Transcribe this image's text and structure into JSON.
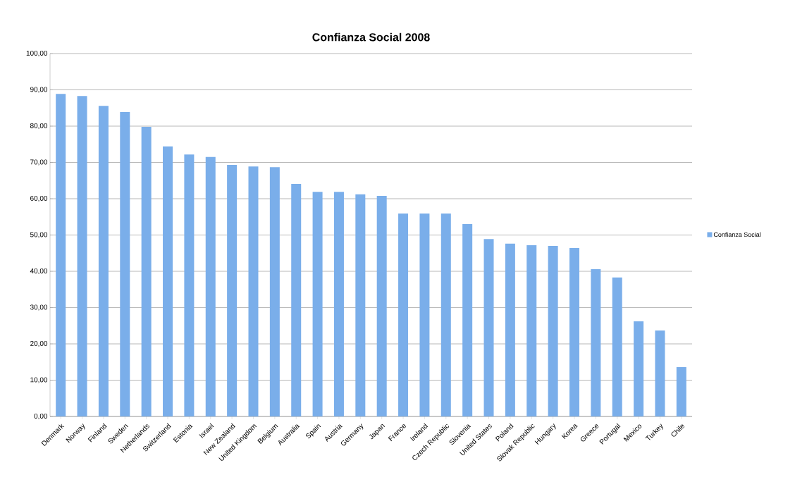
{
  "chart_data": {
    "type": "bar",
    "title": "Confianza Social 2008",
    "categories": [
      "Denmark",
      "Norway",
      "Finland",
      "Sweden",
      "Netherlands",
      "Switzerland",
      "Estonia",
      "Israel",
      "New Zealand",
      "United Kingdom",
      "Belgium",
      "Australia",
      "Spain",
      "Austria",
      "Germany",
      "Japan",
      "France",
      "Ireland",
      "Czech Republic",
      "Slovenia",
      "United States",
      "Poland",
      "Slovak Republic",
      "Hungary",
      "Korea",
      "Greece",
      "Portugal",
      "Mexico",
      "Turkey",
      "Chile"
    ],
    "series": [
      {
        "name": "Confianza Social",
        "color": "#7aaeea",
        "values": [
          88.9,
          88.3,
          85.6,
          83.9,
          79.8,
          74.4,
          72.2,
          71.5,
          69.3,
          68.9,
          68.7,
          64.1,
          61.9,
          61.9,
          61.2,
          60.8,
          55.9,
          55.9,
          55.9,
          53.0,
          48.9,
          47.6,
          47.2,
          47.0,
          46.4,
          40.6,
          38.3,
          26.2,
          23.7,
          13.6
        ]
      }
    ],
    "ylim": [
      0,
      100
    ],
    "yticks": [
      {
        "value": 0,
        "label": "0,00"
      },
      {
        "value": 10,
        "label": "10,00"
      },
      {
        "value": 20,
        "label": "20,00"
      },
      {
        "value": 30,
        "label": "30,00"
      },
      {
        "value": 40,
        "label": "40,00"
      },
      {
        "value": 50,
        "label": "50,00"
      },
      {
        "value": 60,
        "label": "60,00"
      },
      {
        "value": 70,
        "label": "70,00"
      },
      {
        "value": 80,
        "label": "80,00"
      },
      {
        "value": 90,
        "label": "90,00"
      },
      {
        "value": 100,
        "label": "100,00"
      }
    ],
    "grid": "y",
    "legend": "right"
  }
}
